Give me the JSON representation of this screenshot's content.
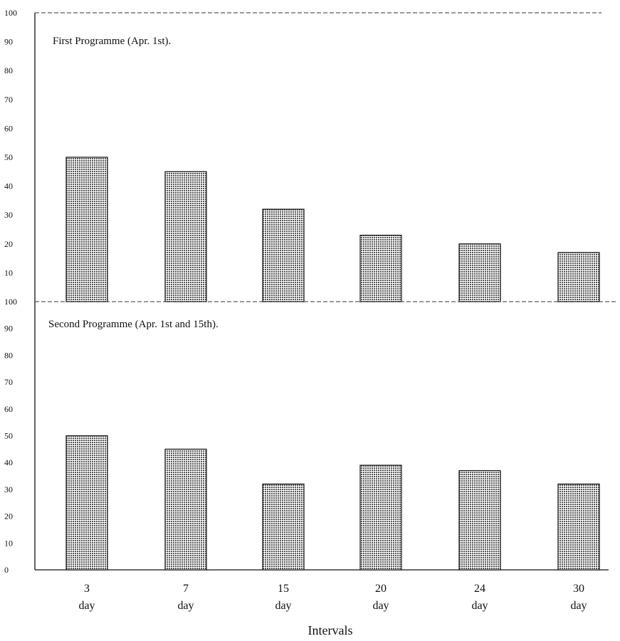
{
  "chart_data": [
    {
      "type": "bar",
      "title": "First Programme (Apr. 1st).",
      "categories": [
        "3 day",
        "7 day",
        "15 day",
        "20 day",
        "24 day",
        "30 day"
      ],
      "values": [
        50,
        45,
        32,
        23,
        20,
        17
      ],
      "ylim": [
        0,
        100
      ],
      "yticks": [
        "10",
        "20",
        "30",
        "40",
        "50",
        "60",
        "70",
        "80",
        "90",
        "100"
      ]
    },
    {
      "type": "bar",
      "title": "Second Programme (Apr. 1st and 15th).",
      "categories": [
        "3 day",
        "7 day",
        "15 day",
        "20 day",
        "24 day",
        "30 day"
      ],
      "values": [
        50,
        45,
        32,
        39,
        37,
        32
      ],
      "ylim": [
        0,
        100
      ],
      "yticks": [
        "0",
        "10",
        "20",
        "30",
        "40",
        "50",
        "60",
        "70",
        "80",
        "90",
        "100"
      ]
    }
  ],
  "x_tick_labels": [
    {
      "num": "3",
      "unit": "day"
    },
    {
      "num": "7",
      "unit": "day"
    },
    {
      "num": "15",
      "unit": "day"
    },
    {
      "num": "20",
      "unit": "day"
    },
    {
      "num": "24",
      "unit": "day"
    },
    {
      "num": "30",
      "unit": "day"
    }
  ],
  "xlabel": "Intervals",
  "bar_color": "#bdbdbd"
}
